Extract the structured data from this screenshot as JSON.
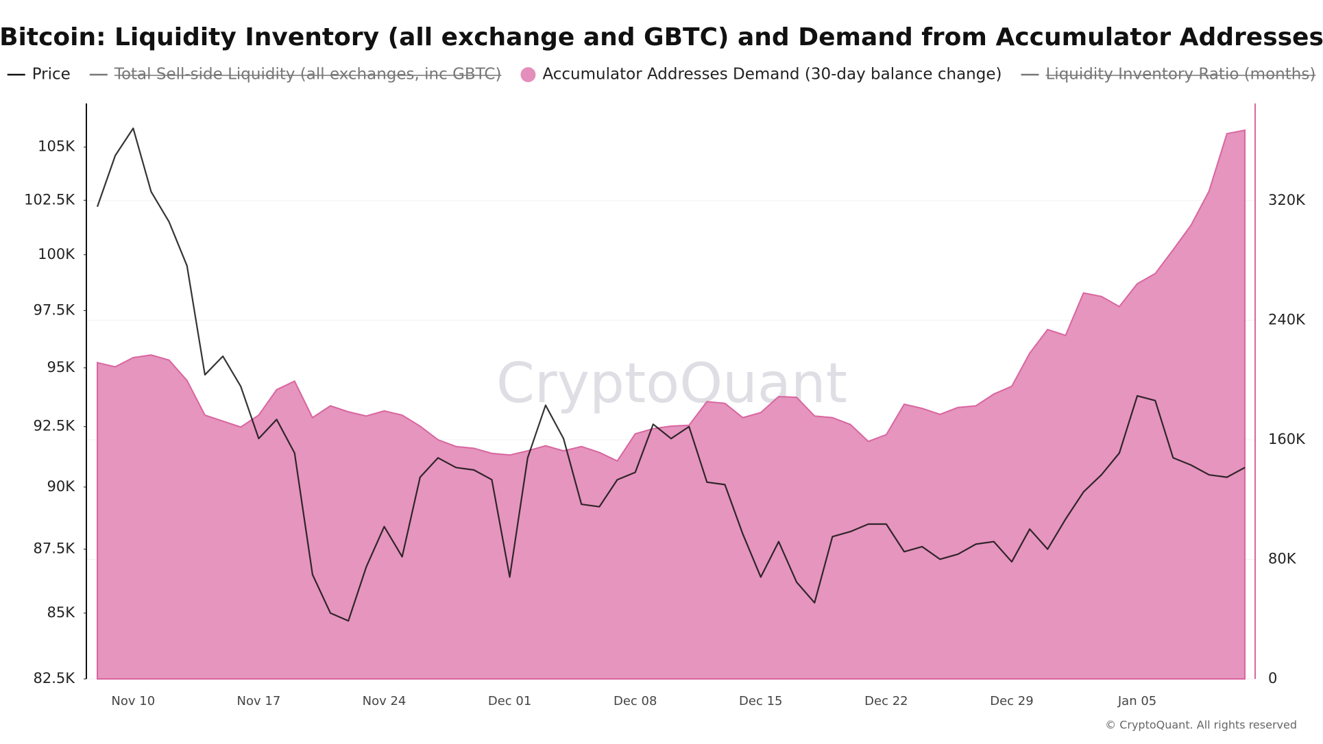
{
  "chart_data": {
    "type": "line",
    "title": "Bitcoin: Liquidity Inventory (all exchange and GBTC) and Demand from Accumulator Addresses",
    "watermark": "CryptoQuant",
    "footer": "© CryptoQuant. All rights reserved",
    "categories": [
      null,
      null,
      "Nov 10",
      null,
      null,
      null,
      null,
      null,
      null,
      "Nov 17",
      null,
      null,
      null,
      null,
      null,
      null,
      "Nov 24",
      null,
      null,
      null,
      null,
      null,
      null,
      "Dec 01",
      null,
      null,
      null,
      null,
      null,
      null,
      "Dec 08",
      null,
      null,
      null,
      null,
      null,
      null,
      "Dec 15",
      null,
      null,
      null,
      null,
      null,
      null,
      "Dec 22",
      null,
      null,
      null,
      null,
      null,
      null,
      "Dec 29",
      null,
      null,
      null,
      null,
      null,
      null,
      "Jan 05",
      null,
      null,
      null,
      null,
      null,
      null
    ],
    "series": [
      {
        "name": "Price",
        "type": "line",
        "axis": "y",
        "color": "#111111",
        "values": [
          102200,
          104600,
          105900,
          102900,
          101500,
          99500,
          94700,
          95500,
          94200,
          92000,
          92800,
          91400,
          86500,
          85000,
          84700,
          86800,
          88400,
          87200,
          90400,
          91200,
          90800,
          90700,
          90300,
          86400,
          91200,
          93400,
          92000,
          89300,
          89200,
          90300,
          90600,
          92600,
          92000,
          92500,
          90200,
          90100,
          88100,
          86400,
          87800,
          86200,
          85400,
          88000,
          88200,
          88500,
          88500,
          87400,
          87600,
          87100,
          87300,
          87700,
          87800,
          87000,
          88300,
          87500,
          88700,
          89800,
          90500,
          91400,
          93800,
          93600,
          91200,
          90900,
          90500,
          90400,
          90800
        ]
      },
      {
        "name": "Total Sell-side Liquidity (all exchanges, inc GBTC)",
        "hidden": true,
        "color": "#888888"
      },
      {
        "name": "Accumulator Addresses Demand (30-day balance change)",
        "type": "area",
        "axis": "y2",
        "color": "#e48fbb",
        "values": [
          211600,
          208800,
          215000,
          216700,
          213300,
          199700,
          176500,
          172500,
          168500,
          176500,
          193500,
          199200,
          174800,
          182700,
          178700,
          175900,
          179300,
          176500,
          169100,
          160000,
          155500,
          154300,
          150900,
          149800,
          152600,
          156000,
          152600,
          155500,
          151500,
          145800,
          164000,
          167400,
          169100,
          169700,
          185500,
          184400,
          174800,
          178200,
          188900,
          188400,
          175900,
          174800,
          170200,
          158900,
          163400,
          183800,
          181000,
          177000,
          181600,
          182700,
          190600,
          195800,
          217900,
          233800,
          229800,
          258200,
          255900,
          249100,
          264400,
          271200,
          287100,
          303600,
          326300,
          364800,
          367100
        ]
      },
      {
        "name": "Liquidity Inventory Ratio (months)",
        "hidden": true,
        "color": "#888888"
      }
    ],
    "ylim": [
      82500,
      107100
    ],
    "ylog": true,
    "yticks": [
      {
        "value": 82500,
        "label": "82.5K"
      },
      {
        "value": 85000,
        "label": "85K"
      },
      {
        "value": 87500,
        "label": "87.5K"
      },
      {
        "value": 90000,
        "label": "90K"
      },
      {
        "value": 92500,
        "label": "92.5K"
      },
      {
        "value": 95000,
        "label": "95K"
      },
      {
        "value": 97500,
        "label": "97.5K"
      },
      {
        "value": 100000,
        "label": "100K"
      },
      {
        "value": 102500,
        "label": "102.5K"
      },
      {
        "value": 105000,
        "label": "105K"
      }
    ],
    "y2lim": [
      0,
      385000
    ],
    "y2ticks": [
      0,
      {
        "value": 80000,
        "label": "80K"
      },
      {
        "value": 160000,
        "label": "160K"
      },
      {
        "value": 240000,
        "label": "240K"
      },
      {
        "value": 320000,
        "label": "320K"
      }
    ],
    "grid": true,
    "legend": "top"
  }
}
